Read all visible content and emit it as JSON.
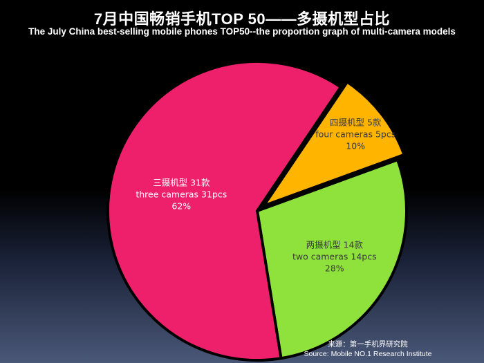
{
  "header": {
    "title": "7月中国畅销手机TOP 50——多摄机型占比",
    "subtitle": "The July China best-selling mobile phones TOP50--the proportion graph of multi-camera models"
  },
  "chart_data": {
    "type": "pie",
    "total": 50,
    "slices": [
      {
        "name_cn": "四摄机型 5款",
        "name_en": "four cameras 5pcs",
        "value": 5,
        "percent": "10%",
        "color": "#ffb400"
      },
      {
        "name_cn": "两摄机型 14款",
        "name_en": "two cameras 14pcs",
        "value": 14,
        "percent": "28%",
        "color": "#8fe23c"
      },
      {
        "name_cn": "三摄机型 31款",
        "name_en": "three cameras 31pcs",
        "value": 31,
        "percent": "62%",
        "color": "#ee1f6b"
      }
    ]
  },
  "footer": {
    "source_cn": "来源：第一手机界研究院",
    "source_en": "Source: Mobile NO.1 Research Institute"
  }
}
